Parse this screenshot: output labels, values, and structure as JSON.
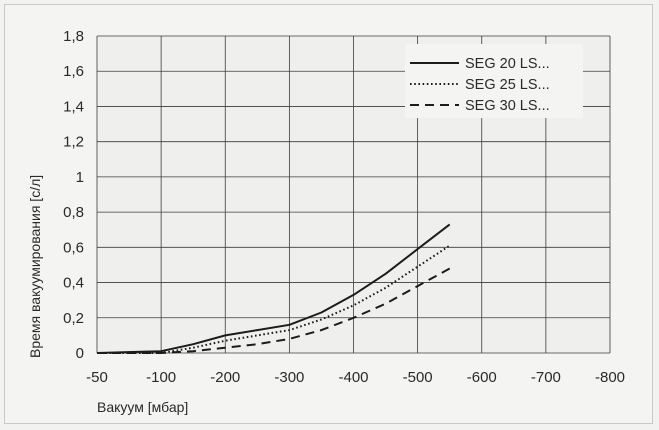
{
  "chart_data": {
    "type": "line",
    "xlabel": "Вакуум [мбар]",
    "ylabel": "Время вакуумирования [с/л]",
    "x_ticks": [
      "-50",
      "-100",
      "-200",
      "-300",
      "-400",
      "-500",
      "-600",
      "-700",
      "-800"
    ],
    "y_ticks": [
      "0",
      "0,2",
      "0,4",
      "0,6",
      "0,8",
      "1",
      "1,2",
      "1,4",
      "1,6",
      "1,8"
    ],
    "xlim": [
      -50,
      -800
    ],
    "ylim": [
      0,
      1.8
    ],
    "grid": true,
    "legend_position": "top-right",
    "series": [
      {
        "name": "SEG 20 LS...",
        "style": "solid",
        "x": [
          -50,
          -100,
          -150,
          -200,
          -250,
          -300,
          -350,
          -400,
          -450,
          -500,
          -550
        ],
        "y": [
          0,
          0.01,
          0.05,
          0.1,
          0.13,
          0.16,
          0.23,
          0.33,
          0.45,
          0.59,
          0.73
        ]
      },
      {
        "name": "SEG 25 LS...",
        "style": "dotted",
        "x": [
          -50,
          -100,
          -150,
          -200,
          -250,
          -300,
          -350,
          -400,
          -450,
          -500,
          -550
        ],
        "y": [
          0,
          0,
          0.03,
          0.07,
          0.1,
          0.13,
          0.19,
          0.27,
          0.37,
          0.49,
          0.61
        ]
      },
      {
        "name": "SEG 30 LS...",
        "style": "dashed",
        "x": [
          -50,
          -100,
          -150,
          -200,
          -250,
          -300,
          -350,
          -400,
          -450,
          -500,
          -550
        ],
        "y": [
          0,
          0,
          0.01,
          0.03,
          0.05,
          0.08,
          0.13,
          0.2,
          0.28,
          0.38,
          0.48
        ]
      }
    ]
  }
}
